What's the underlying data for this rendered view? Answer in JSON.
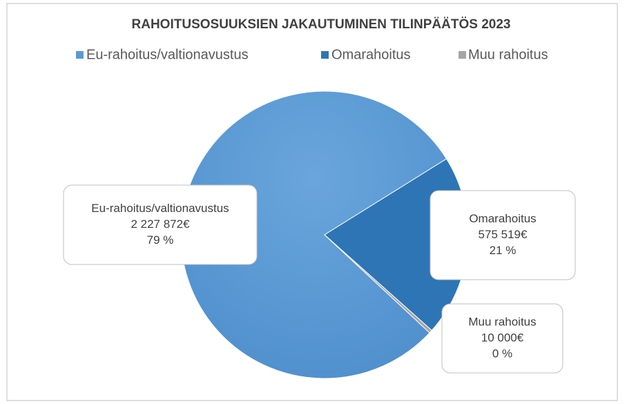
{
  "chart_data": {
    "type": "pie",
    "title": "RAHOITUSOSUUKSIEN JAKAUTUMINEN TILINPÄÄTÖS 2023",
    "categories": [
      "Eu-rahoitus/valtionavustus",
      "Omarahoitus",
      "Muu rahoitus"
    ],
    "values": [
      2227872,
      575519,
      10000
    ],
    "value_labels": [
      "2 227 872€",
      "575 519€",
      "10 000€"
    ],
    "percent_labels": [
      "79 %",
      "21 %",
      "0 %"
    ],
    "colors": [
      "#5b9bd5",
      "#2e75b6",
      "#a5a5a5"
    ],
    "legend": "top"
  }
}
